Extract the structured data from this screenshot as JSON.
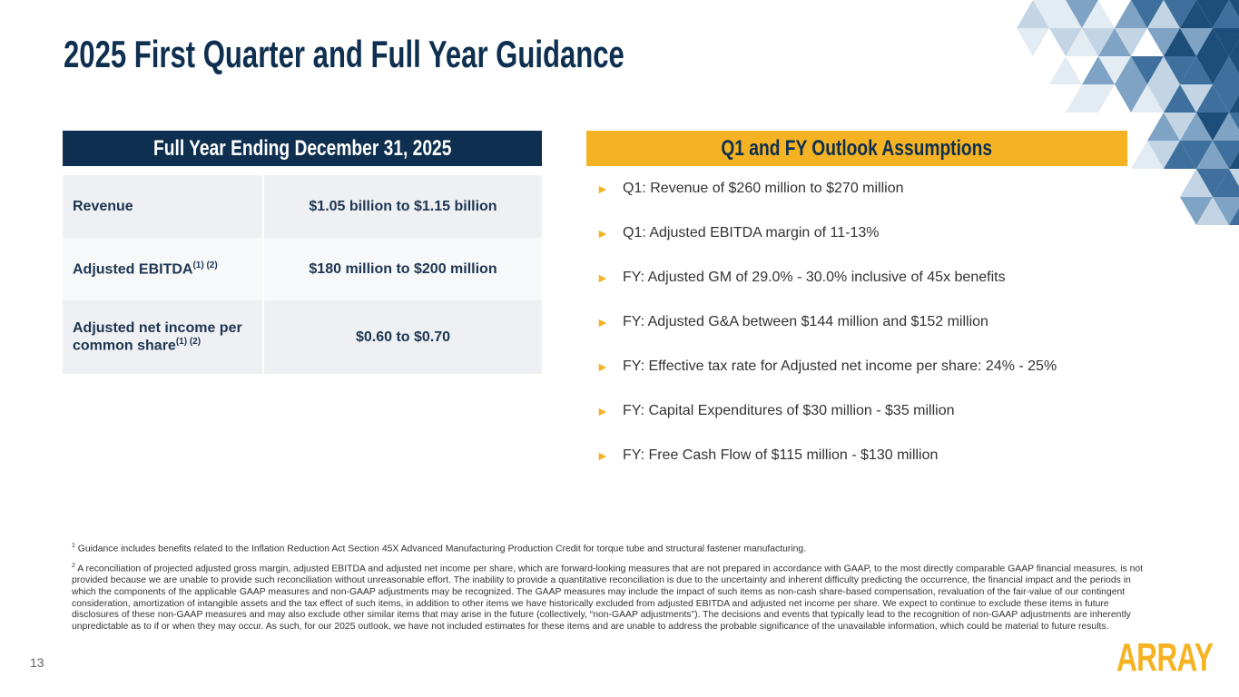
{
  "title": "2025 First Quarter and Full Year Guidance",
  "guidance": {
    "header": "Full Year Ending December 31, 2025",
    "rows": [
      {
        "label": "Revenue",
        "value": "$1.05 billion to $1.15 billion"
      },
      {
        "label": "Adjusted EBITDA",
        "sup": "(1) (2)",
        "value": "$180 million to $200 million"
      },
      {
        "label": "Adjusted net income per common share",
        "sup": "(1) (2)",
        "value": "$0.60 to $0.70"
      }
    ]
  },
  "assumptions": {
    "header": "Q1 and FY Outlook Assumptions",
    "items": [
      "Q1:  Revenue of $260 million to $270 million",
      "Q1:  Adjusted EBITDA margin of 11-13%",
      "FY:  Adjusted GM of 29.0% - 30.0% inclusive of 45x benefits",
      "FY:  Adjusted G&A between $144 million and $152 million",
      "FY:  Effective tax rate for Adjusted net income per share: 24% - 25%",
      "FY:  Capital Expenditures of $30 million - $35 million",
      "FY:  Free Cash Flow of $115 million - $130 million"
    ]
  },
  "footnotes": [
    {
      "mark": "1",
      "text": "Guidance includes benefits related to the Inflation Reduction Act Section 45X Advanced Manufacturing Production Credit for torque tube and structural fastener manufacturing."
    },
    {
      "mark": "2",
      "text": "A reconciliation of projected adjusted gross margin, adjusted EBITDA and adjusted net income per share, which are forward-looking measures that are not prepared in accordance with GAAP, to the most directly comparable GAAP financial measures, is not provided because we are unable to provide such reconciliation without unreasonable effort. The inability to provide a quantitative reconciliation is due to the uncertainty and inherent difficulty predicting the occurrence, the financial impact and the periods in which the components of the applicable GAAP measures and non-GAAP adjustments may be recognized. The GAAP measures may include the impact of such items as non-cash share-based compensation, revaluation of the fair-value of our contingent consideration, amortization of intangible assets and the tax effect of such items, in addition to other items we have historically excluded from adjusted EBITDA and adjusted net income per share. We expect to continue to exclude these items in future disclosures of these non-GAAP measures and may also exclude other similar items that may arise in the future (collectively, “non-GAAP adjustments”). The decisions and events that typically lead to the recognition of non-GAAP adjustments are inherently unpredictable as to if or when they may occur. As such, for our 2025 outlook, we have not included estimates for these items and are unable to address the probable significance of the unavailable information, which could be material to future results."
    }
  ],
  "page_number": "13",
  "logo": "ARRAY"
}
